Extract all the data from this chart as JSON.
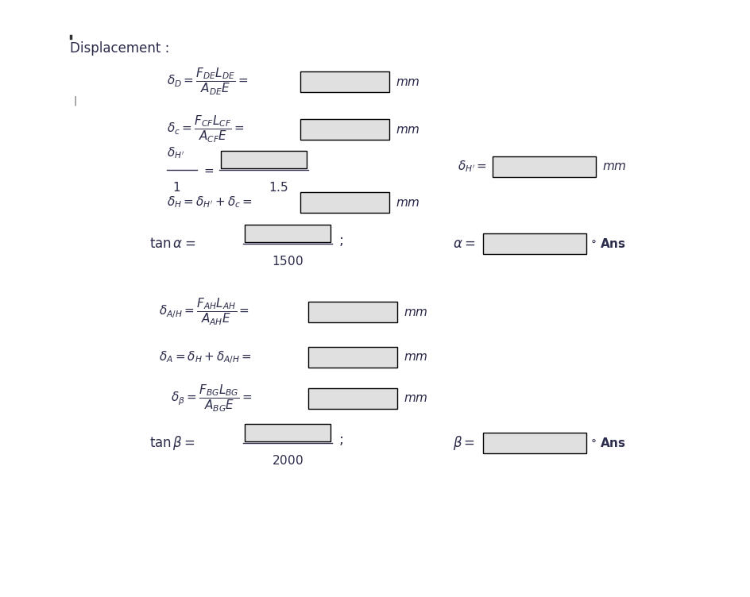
{
  "title": "Displacement :",
  "bg_color": "#ffffff",
  "text_color": "#2b2b4b",
  "box_fill": "#e0e0e0",
  "box_edge": "#000000",
  "fig_width": 9.44,
  "fig_height": 7.52,
  "dpi": 100,
  "font_size_main": 11,
  "font_size_title": 12,
  "font_size_bold": 12
}
